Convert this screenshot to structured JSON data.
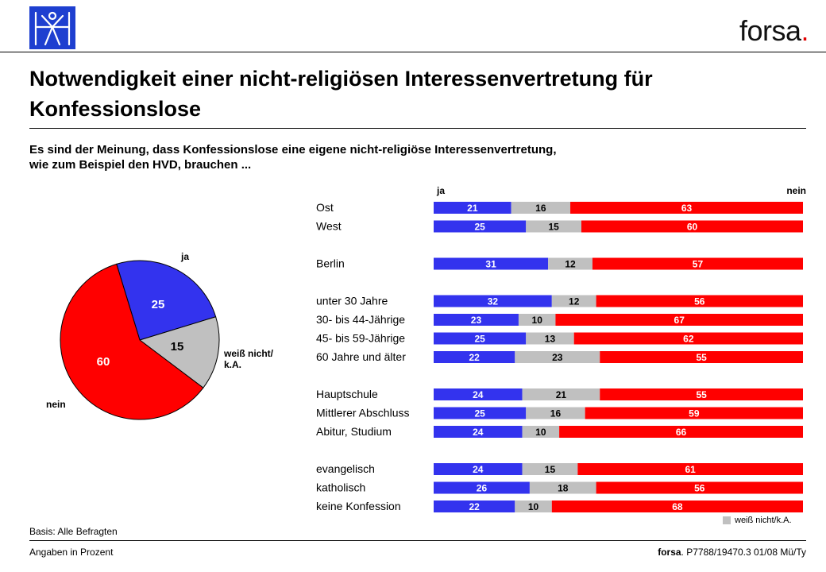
{
  "header": {
    "brand": "forsa",
    "brand_dot": ".",
    "title_line1": "Notwendigkeit einer nicht-religiösen Interessenvertretung für",
    "title_line2": "Konfessionslose",
    "subtitle_line1": "Es sind der Meinung, dass Konfessionslose eine eigene nicht-religiöse Interessenvertretung,",
    "subtitle_line2": "wie zum Beispiel den HVD, brauchen ..."
  },
  "footer": {
    "basis": "Basis: Alle Befragten",
    "units": "Angaben in Prozent",
    "source_brand": "forsa",
    "source_rest": ". P7788/19470.3  01/08 Mü/Ty"
  },
  "legend": {
    "label": "weiß nicht/k.A.",
    "color": "#c0c0c0"
  },
  "colors": {
    "ja": "#3333ee",
    "weiss_nicht": "#c0c0c0",
    "nein": "#ff0000"
  },
  "chart_data": [
    {
      "type": "pie",
      "slices": [
        {
          "label": "ja",
          "value": 25,
          "color": "#3333ee"
        },
        {
          "label": "weiß nicht/\nk.A.",
          "value": 15,
          "color": "#c0c0c0"
        },
        {
          "label": "nein",
          "value": 60,
          "color": "#ff0000"
        }
      ]
    },
    {
      "type": "bar",
      "orientation": "horizontal",
      "stacked": true,
      "header_left": "ja",
      "header_right": "nein",
      "series_order": [
        "ja",
        "weiß nicht/k.A.",
        "nein"
      ],
      "groups": [
        {
          "rows": [
            {
              "label": "Ost",
              "values": [
                21,
                16,
                63
              ]
            },
            {
              "label": "West",
              "values": [
                25,
                15,
                60
              ]
            }
          ]
        },
        {
          "rows": [
            {
              "label": "Berlin",
              "values": [
                31,
                12,
                57
              ]
            }
          ]
        },
        {
          "rows": [
            {
              "label": "unter 30 Jahre",
              "values": [
                32,
                12,
                56
              ]
            },
            {
              "label": "30- bis 44-Jährige",
              "values": [
                23,
                10,
                67
              ]
            },
            {
              "label": "45- bis 59-Jährige",
              "values": [
                25,
                13,
                62
              ]
            },
            {
              "label": "60 Jahre und älter",
              "values": [
                22,
                23,
                55
              ]
            }
          ]
        },
        {
          "rows": [
            {
              "label": "Hauptschule",
              "values": [
                24,
                21,
                55
              ]
            },
            {
              "label": "Mittlerer Abschluss",
              "values": [
                25,
                16,
                59
              ]
            },
            {
              "label": "Abitur, Studium",
              "values": [
                24,
                10,
                66
              ]
            }
          ]
        },
        {
          "rows": [
            {
              "label": "evangelisch",
              "values": [
                24,
                15,
                61
              ]
            },
            {
              "label": "katholisch",
              "values": [
                26,
                18,
                56
              ]
            },
            {
              "label": "keine Konfession",
              "values": [
                22,
                10,
                68
              ]
            }
          ]
        }
      ]
    }
  ]
}
